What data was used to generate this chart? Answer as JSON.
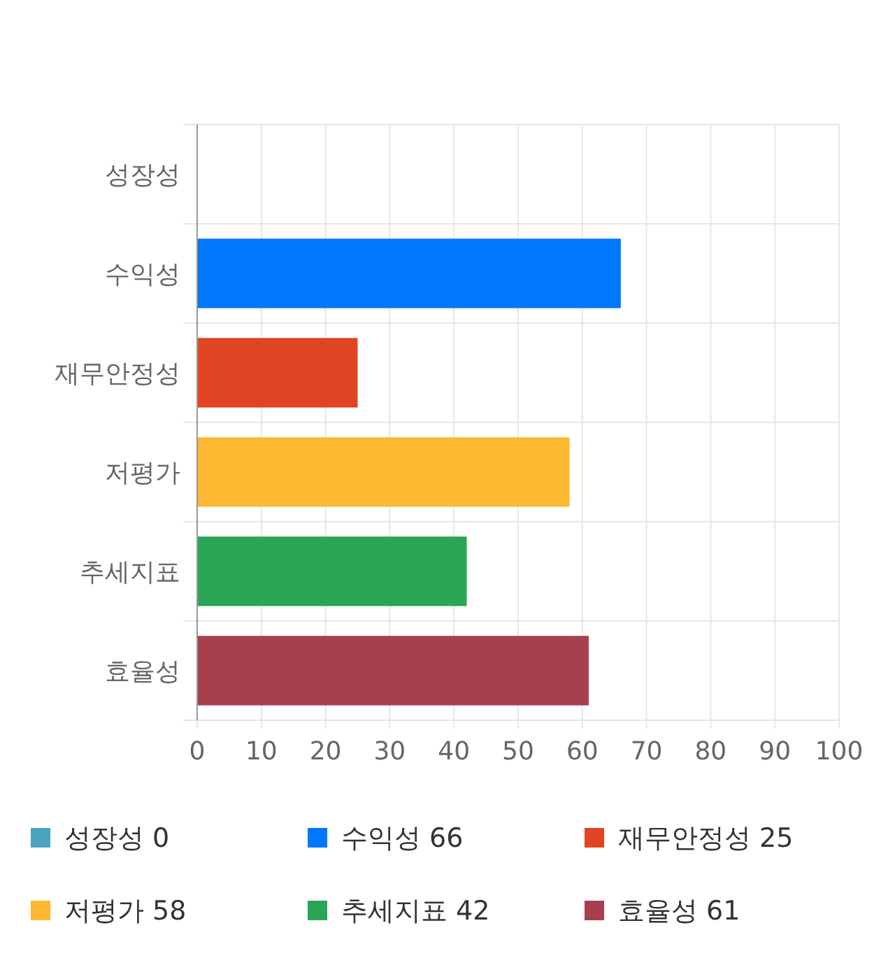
{
  "chart_data": {
    "type": "bar",
    "orientation": "horizontal",
    "stacked": true,
    "categories": [
      "성장성",
      "수익성",
      "재무안정성",
      "저평가",
      "추세지표",
      "효율성"
    ],
    "series": [
      {
        "name": "성장성 0",
        "color": "#4aa3bf",
        "values": [
          0,
          null,
          null,
          null,
          null,
          null
        ]
      },
      {
        "name": "수익성 66",
        "color": "#0077ff",
        "values": [
          null,
          66,
          null,
          null,
          null,
          null
        ]
      },
      {
        "name": "재무안정성 25",
        "color": "#e04423",
        "values": [
          null,
          null,
          25,
          null,
          null,
          null
        ]
      },
      {
        "name": "저평가 58",
        "color": "#feb731",
        "values": [
          null,
          null,
          null,
          58,
          null,
          null
        ]
      },
      {
        "name": "추세지표 42",
        "color": "#29a655",
        "values": [
          null,
          null,
          null,
          null,
          42,
          null
        ]
      },
      {
        "name": "효율성 61",
        "color": "#a6404e",
        "values": [
          null,
          null,
          null,
          null,
          null,
          61
        ]
      }
    ],
    "xlim": [
      0,
      100
    ],
    "xticks": [
      0,
      10,
      20,
      30,
      40,
      50,
      60,
      70,
      80,
      90,
      100
    ],
    "grid": true,
    "legend": "bottom"
  }
}
